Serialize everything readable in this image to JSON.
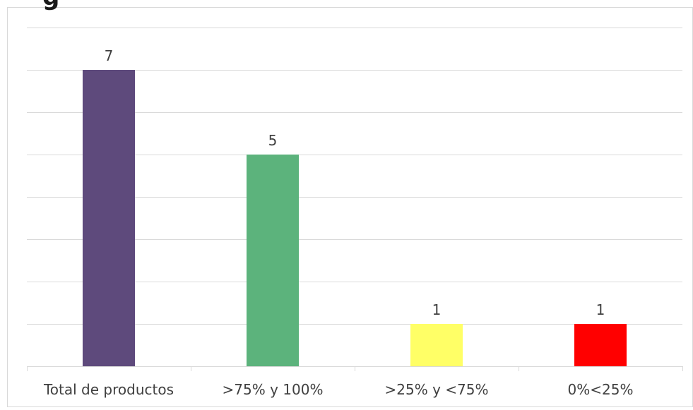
{
  "chart_data": {
    "type": "bar",
    "title": "",
    "xlabel": "",
    "ylabel": "",
    "categories": [
      "Total de productos",
      ">75% y 100%",
      ">25% y <75%",
      "0%<25%"
    ],
    "values": [
      7,
      5,
      1,
      1
    ],
    "data_labels": [
      "7",
      "5",
      "1",
      "1"
    ],
    "bar_colors": [
      "#5e4a7c",
      "#5cb37c",
      "#ffff66",
      "#ff0000"
    ],
    "ylim": [
      0,
      8
    ],
    "y_axis_visible": false,
    "grid": true,
    "legend": "none"
  },
  "title_fragment": "g"
}
